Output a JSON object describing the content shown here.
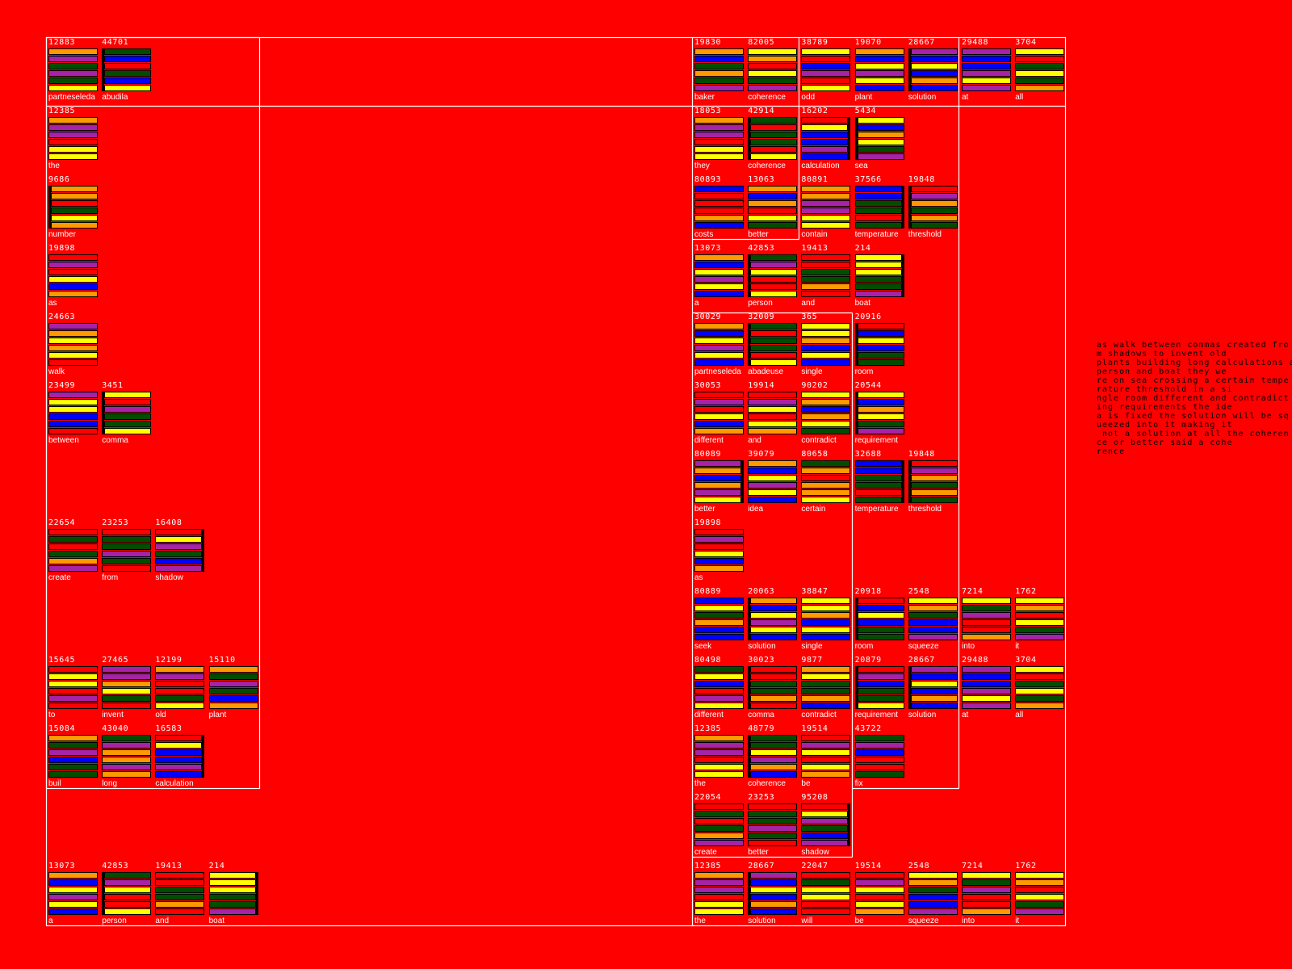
{
  "palette": {
    "O": "#ff9900",
    "P": "#a622a6",
    "G": "#004d00",
    "B": "#0000ff",
    "Y": "#ffff00",
    "R": "#ff0000"
  },
  "background": "#ff0000",
  "left_panel": {
    "rows": [
      [
        {
          "number": "12883",
          "word": "partneseleda",
          "bars": "OPGPGY"
        },
        {
          "number": "44701",
          "word": "abudila",
          "bars": "GBRGBY",
          "marker": "left"
        }
      ],
      [
        {
          "number": "12385",
          "word": "the",
          "bars": "OPPRYY"
        }
      ],
      [
        {
          "number": "9686",
          "word": "number",
          "bars": "OORGYO",
          "marker": "left"
        }
      ],
      [
        {
          "number": "19898",
          "word": "as",
          "bars": "RPRYBO"
        }
      ],
      [
        {
          "number": "24663",
          "word": "walk",
          "bars": "POYOYR"
        }
      ],
      [
        {
          "number": "23499",
          "word": "between",
          "bars": "PYYBBR"
        },
        {
          "number": "3451",
          "word": "comma",
          "bars": "YRPGGY",
          "marker": "left"
        }
      ],
      [],
      [
        {
          "number": "22654",
          "word": "create",
          "bars": "RGRGOP"
        },
        {
          "number": "23253",
          "word": "from",
          "bars": "RGGPGR"
        },
        {
          "number": "16408",
          "word": "shadow",
          "bars": "RYPGBP",
          "marker": "right"
        }
      ],
      [],
      [
        {
          "number": "15645",
          "word": "to",
          "bars": "RYYRPR"
        },
        {
          "number": "27465",
          "word": "invent",
          "bars": "PPOYGR"
        },
        {
          "number": "12199",
          "word": "old",
          "bars": "OPRRGY"
        },
        {
          "number": "15110",
          "word": "plant",
          "bars": "OGPGBO"
        }
      ],
      [
        {
          "number": "15084",
          "word": "buil",
          "bars": "OGPBGG"
        },
        {
          "number": "43040",
          "word": "long",
          "bars": "GPOOPO"
        },
        {
          "number": "16583",
          "word": "calculation",
          "bars": "RYBBPB",
          "marker": "right"
        }
      ],
      [],
      [
        {
          "number": "13073",
          "word": "a",
          "bars": "OBYPYB"
        },
        {
          "number": "42853",
          "word": "person",
          "bars": "GPYRRY",
          "marker": "left"
        },
        {
          "number": "19413",
          "word": "and",
          "bars": "RRGGOR"
        },
        {
          "number": "214",
          "word": "boat",
          "bars": "YYYGGP",
          "marker": "right"
        }
      ]
    ]
  },
  "right_panel": {
    "rows": [
      [
        {
          "number": "19830",
          "word": "baker",
          "bars": "OBGOGP"
        },
        {
          "number": "82005",
          "word": "coherence",
          "bars": "YORYGP"
        },
        {
          "number": "38789",
          "word": "odd",
          "bars": "YRBPRY"
        },
        {
          "number": "19070",
          "word": "plant",
          "bars": "OBYPYB"
        },
        {
          "number": "28667",
          "word": "solution",
          "bars": "PBYBOB",
          "marker": "left"
        },
        {
          "number": "29488",
          "word": "at",
          "bars": "PBBPYP"
        },
        {
          "number": "3704",
          "word": "all",
          "bars": "YRGYGO"
        }
      ],
      [
        {
          "number": "18053",
          "word": "they",
          "bars": "OPPRYY"
        },
        {
          "number": "42914",
          "word": "coherence",
          "bars": "GRGGRY",
          "marker": "left"
        },
        {
          "number": "16202",
          "word": "calculation",
          "bars": "RYBBPB",
          "marker": "right"
        },
        {
          "number": "5434",
          "word": "sea",
          "bars": "YBOYGP",
          "marker": "left"
        }
      ],
      [
        {
          "number": "80893",
          "word": "costs",
          "bars": "BRRROB"
        },
        {
          "number": "13063",
          "word": "better",
          "bars": "OBORYG"
        },
        {
          "number": "80891",
          "word": "contain",
          "bars": "OOPPYY"
        },
        {
          "number": "37566",
          "word": "temperature",
          "bars": "BBGGRG",
          "marker": "right"
        },
        {
          "number": "19848",
          "word": "threshold",
          "bars": "RPOGOG",
          "marker": "left"
        }
      ],
      [
        {
          "number": "13073",
          "word": "a",
          "bars": "OBYPYB"
        },
        {
          "number": "42853",
          "word": "person",
          "bars": "GPYRRY",
          "marker": "left"
        },
        {
          "number": "19413",
          "word": "and",
          "bars": "RRGGOR"
        },
        {
          "number": "214",
          "word": "boat",
          "bars": "YYYGGP",
          "marker": "right"
        }
      ],
      [
        {
          "number": "30029",
          "word": "partneseleda",
          "bars": "OBYPYB"
        },
        {
          "number": "32009",
          "word": "abadeuse",
          "bars": "GRGGRY",
          "marker": "left"
        },
        {
          "number": "365",
          "word": "single",
          "bars": "YYOBYB"
        },
        {
          "number": "20916",
          "word": "room",
          "bars": "RBYBGG",
          "marker": "left"
        }
      ],
      [
        {
          "number": "30053",
          "word": "different",
          "bars": "RPRYBO"
        },
        {
          "number": "19914",
          "word": "and",
          "bars": "RPYRYO"
        },
        {
          "number": "90202",
          "word": "contradict",
          "bars": "YOBOYG"
        },
        {
          "number": "20544",
          "word": "requirement",
          "bars": "YBOYGP",
          "marker": "left"
        }
      ],
      [
        {
          "number": "80089",
          "word": "better",
          "bars": "POBOPY",
          "marker": "right"
        },
        {
          "number": "39079",
          "word": "idea",
          "bars": "OBYPYB"
        },
        {
          "number": "80658",
          "word": "certain",
          "bars": "GOROOY"
        },
        {
          "number": "32688",
          "word": "temperature",
          "bars": "BBGGRG",
          "marker": "right"
        },
        {
          "number": "19848",
          "word": "threshold",
          "bars": "RPOGOG",
          "marker": "left"
        }
      ],
      [
        {
          "number": "19898",
          "word": "as",
          "bars": "RPRYBO"
        }
      ],
      [
        {
          "number": "80889",
          "word": "seek",
          "bars": "BYGOBB"
        },
        {
          "number": "20063",
          "word": "solution",
          "bars": "OBYPYB",
          "marker": "left"
        },
        {
          "number": "38847",
          "word": "single",
          "bars": "YYOBYB"
        },
        {
          "number": "20918",
          "word": "room",
          "bars": "RBYBGG",
          "marker": "left"
        },
        {
          "number": "2548",
          "word": "squeeze",
          "bars": "YOGBBP"
        },
        {
          "number": "7214",
          "word": "into",
          "bars": "YGPRRO"
        },
        {
          "number": "1762",
          "word": "it",
          "bars": "YORYGP"
        }
      ],
      [
        {
          "number": "80498",
          "word": "different",
          "bars": "GYBRPY"
        },
        {
          "number": "30023",
          "word": "comma",
          "bars": "RRGGOR",
          "marker": "left"
        },
        {
          "number": "9877",
          "word": "contradict",
          "bars": "OYGGOB"
        },
        {
          "number": "20879",
          "word": "requirement",
          "bars": "RPBGGY",
          "marker": "left"
        },
        {
          "number": "28667",
          "word": "solution",
          "bars": "PBYBOB",
          "marker": "left"
        },
        {
          "number": "29488",
          "word": "at",
          "bars": "PBBPYP"
        },
        {
          "number": "3704",
          "word": "all",
          "bars": "YRGYGO"
        }
      ],
      [
        {
          "number": "12385",
          "word": "the",
          "bars": "OPPRYY"
        },
        {
          "number": "48779",
          "word": "coherence",
          "bars": "GGYPOB",
          "marker": "left"
        },
        {
          "number": "19514",
          "word": "be",
          "bars": "RPYRYO"
        },
        {
          "number": "43722",
          "word": "fix",
          "bars": "GPBRRG"
        }
      ],
      [
        {
          "number": "22054",
          "word": "create",
          "bars": "RGRGOP"
        },
        {
          "number": "23253",
          "word": "better",
          "bars": "RGGPGR"
        },
        {
          "number": "95208",
          "word": "shadow",
          "bars": "RYPGBP",
          "marker": "right"
        }
      ],
      [
        {
          "number": "12385",
          "word": "the",
          "bars": "OPPRYY"
        },
        {
          "number": "28667",
          "word": "solution",
          "bars": "PBYBOB",
          "marker": "left"
        },
        {
          "number": "22047",
          "word": "will",
          "bars": "RGYYRR"
        },
        {
          "number": "19514",
          "word": "be",
          "bars": "RPYRYO"
        },
        {
          "number": "2548",
          "word": "squeeze",
          "bars": "YOGBBP"
        },
        {
          "number": "7214",
          "word": "into",
          "bars": "YGPRRO"
        },
        {
          "number": "1762",
          "word": "it",
          "bars": "YORYGP"
        }
      ]
    ]
  },
  "poem_lines": [
    "as walk between commas created fro",
    "m shadows to invent old",
    "plants building long calculations a",
    "person and boat they we",
    "re on sea crossing a certain tempe",
    "rature threshold in a si",
    "ngle room different and contradict",
    "ing requirements the ide",
    "a is fixed the solution will be sq",
    "ueezed into it making it",
    " not a solution at all the coheren",
    "ce or better said a cohe",
    "rence"
  ]
}
